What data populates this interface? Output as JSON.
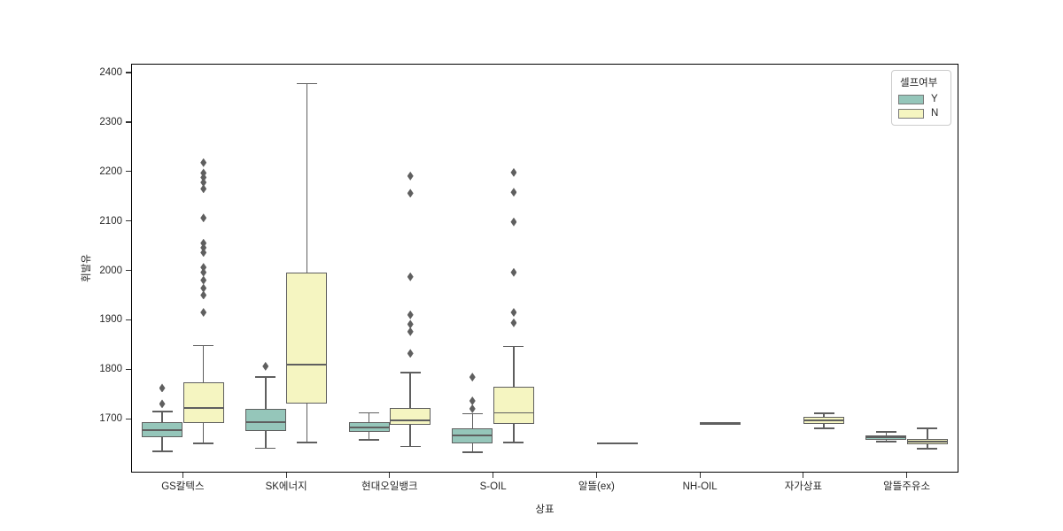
{
  "chart_data": {
    "type": "grouped_boxplot",
    "title": "",
    "xlabel": "상표",
    "ylabel": "휘발유",
    "ylim": [
      1591,
      2418
    ],
    "yticks": [
      1700,
      1800,
      1900,
      2000,
      2100,
      2200,
      2300,
      2400
    ],
    "categories": [
      "GS칼텍스",
      "SK에너지",
      "현대오일뱅크",
      "S-OIL",
      "알뜰(ex)",
      "NH-OIL",
      "자가상표",
      "알뜰주유소"
    ],
    "hue": {
      "name": "셀프여부",
      "levels": [
        "Y",
        "N"
      ],
      "colors": {
        "Y": "#95c6ba",
        "N": "#f5f5c1"
      }
    },
    "legend_position": "upper right",
    "grid": false,
    "style_colors": {
      "box_edge": "#5f5f5f",
      "spine": "#000000",
      "legend_border": "#cccccc"
    },
    "boxes": [
      {
        "category": "GS칼텍스",
        "hue": "Y",
        "whislo": 1634,
        "q1": 1663,
        "med": 1677,
        "q3": 1693,
        "whishi": 1714,
        "outliers": [
          1730,
          1762
        ]
      },
      {
        "category": "GS칼텍스",
        "hue": "N",
        "whislo": 1650,
        "q1": 1691,
        "med": 1721,
        "q3": 1773,
        "whishi": 1848,
        "outliers": [
          1915,
          1950,
          1964,
          1980,
          1996,
          2006,
          2036,
          2046,
          2055,
          2106,
          2165,
          2178,
          2188,
          2197,
          2218
        ]
      },
      {
        "category": "SK에너지",
        "hue": "Y",
        "whislo": 1640,
        "q1": 1676,
        "med": 1693,
        "q3": 1720,
        "whishi": 1784,
        "outliers": [
          1806
        ]
      },
      {
        "category": "SK에너지",
        "hue": "N",
        "whislo": 1652,
        "q1": 1730,
        "med": 1810,
        "q3": 1995,
        "whishi": 2378,
        "outliers": []
      },
      {
        "category": "현대오일뱅크",
        "hue": "Y",
        "whislo": 1657,
        "q1": 1673,
        "med": 1682,
        "q3": 1693,
        "whishi": 1712,
        "outliers": []
      },
      {
        "category": "현대오일뱅크",
        "hue": "N",
        "whislo": 1644,
        "q1": 1688,
        "med": 1696,
        "q3": 1721,
        "whishi": 1793,
        "outliers": [
          1832,
          1876,
          1891,
          1910,
          1987,
          2156,
          2191
        ]
      },
      {
        "category": "S-OIL",
        "hue": "Y",
        "whislo": 1632,
        "q1": 1650,
        "med": 1666,
        "q3": 1680,
        "whishi": 1710,
        "outliers": [
          1720,
          1736,
          1784
        ]
      },
      {
        "category": "S-OIL",
        "hue": "N",
        "whislo": 1652,
        "q1": 1689,
        "med": 1712,
        "q3": 1764,
        "whishi": 1846,
        "outliers": [
          1894,
          1915,
          1996,
          2098,
          2158,
          2198
        ]
      },
      {
        "category": "알뜰(ex)",
        "hue": "N",
        "whislo": 1650,
        "q1": 1650,
        "med": 1650,
        "q3": 1650,
        "whishi": 1650,
        "outliers": []
      },
      {
        "category": "NH-OIL",
        "hue": "N",
        "whislo": 1690,
        "q1": 1690,
        "med": 1690,
        "q3": 1690,
        "whishi": 1690,
        "outliers": []
      },
      {
        "category": "자가상표",
        "hue": "N",
        "whislo": 1680,
        "q1": 1689,
        "med": 1696,
        "q3": 1704,
        "whishi": 1711,
        "outliers": []
      },
      {
        "category": "알뜰주유소",
        "hue": "Y",
        "whislo": 1654,
        "q1": 1657,
        "med": 1662,
        "q3": 1666,
        "whishi": 1673,
        "outliers": []
      },
      {
        "category": "알뜰주유소",
        "hue": "N",
        "whislo": 1639,
        "q1": 1648,
        "med": 1654,
        "q3": 1659,
        "whishi": 1680,
        "outliers": []
      }
    ]
  }
}
